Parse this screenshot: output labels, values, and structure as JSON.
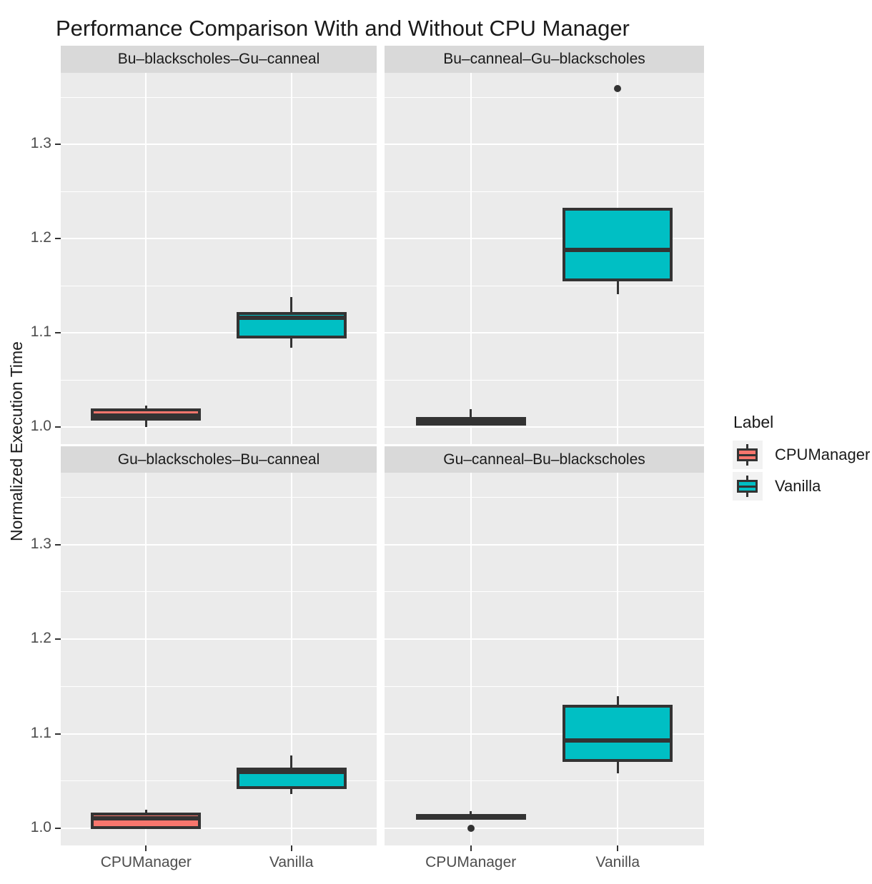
{
  "chart_data": {
    "type": "boxplot",
    "title": "Performance Comparison With and Without CPU Manager",
    "ylabel": "Normalized Execution Time",
    "xlabel": "",
    "categories": [
      "CPUManager",
      "Vanilla"
    ],
    "y_ticks": [
      1.0,
      1.1,
      1.2,
      1.3
    ],
    "y_tick_labels": [
      "1.0",
      "1.1",
      "1.2",
      "1.3"
    ],
    "y_minor_ticks": [
      1.05,
      1.15,
      1.25,
      1.35
    ],
    "ylim": [
      0.982,
      1.376
    ],
    "grid": "white major+minor horizontal lines and major vertical lines on grey panels",
    "legend": {
      "title": "Label",
      "position": "right",
      "entries": [
        {
          "label": "CPUManager",
          "color": "#F8766D"
        },
        {
          "label": "Vanilla",
          "color": "#00BFC4"
        }
      ]
    },
    "colors": {
      "outline": "#333333",
      "panel_bg": "#EBEBEB",
      "strip_bg": "#D9D9D9",
      "grid": "#FFFFFF"
    },
    "panels": [
      {
        "title": "Bu–blackscholes–Gu–canneal",
        "row": 0,
        "col": 0,
        "boxes": [
          {
            "category": "CPUManager",
            "whisker_low": 1.0,
            "q1": 1.007,
            "median": 1.012,
            "q3": 1.02,
            "whisker_high": 1.023,
            "outliers": []
          },
          {
            "category": "Vanilla",
            "whisker_low": 1.084,
            "q1": 1.094,
            "median": 1.116,
            "q3": 1.122,
            "whisker_high": 1.138,
            "outliers": []
          }
        ]
      },
      {
        "title": "Bu–canneal–Gu–blackscholes",
        "row": 0,
        "col": 1,
        "boxes": [
          {
            "category": "CPUManager",
            "whisker_low": 1.002,
            "q1": 1.002,
            "median": 1.006,
            "q3": 1.011,
            "whisker_high": 1.019,
            "outliers": []
          },
          {
            "category": "Vanilla",
            "whisker_low": 1.141,
            "q1": 1.155,
            "median": 1.188,
            "q3": 1.233,
            "whisker_high": 1.233,
            "outliers": [
              1.359
            ]
          }
        ]
      },
      {
        "title": "Gu–blackscholes–Bu–canneal",
        "row": 1,
        "col": 0,
        "boxes": [
          {
            "category": "CPUManager",
            "whisker_low": 0.999,
            "q1": 0.999,
            "median": 1.011,
            "q3": 1.017,
            "whisker_high": 1.02,
            "outliers": []
          },
          {
            "category": "Vanilla",
            "whisker_low": 1.036,
            "q1": 1.042,
            "median": 1.06,
            "q3": 1.064,
            "whisker_high": 1.077,
            "outliers": []
          }
        ]
      },
      {
        "title": "Gu–canneal–Bu–blackscholes",
        "row": 1,
        "col": 1,
        "boxes": [
          {
            "category": "CPUManager",
            "whisker_low": 1.009,
            "q1": 1.009,
            "median": 1.012,
            "q3": 1.015,
            "whisker_high": 1.018,
            "outliers": [
              1.0
            ]
          },
          {
            "category": "Vanilla",
            "whisker_low": 1.058,
            "q1": 1.07,
            "median": 1.093,
            "q3": 1.131,
            "whisker_high": 1.14,
            "outliers": []
          }
        ]
      }
    ]
  }
}
